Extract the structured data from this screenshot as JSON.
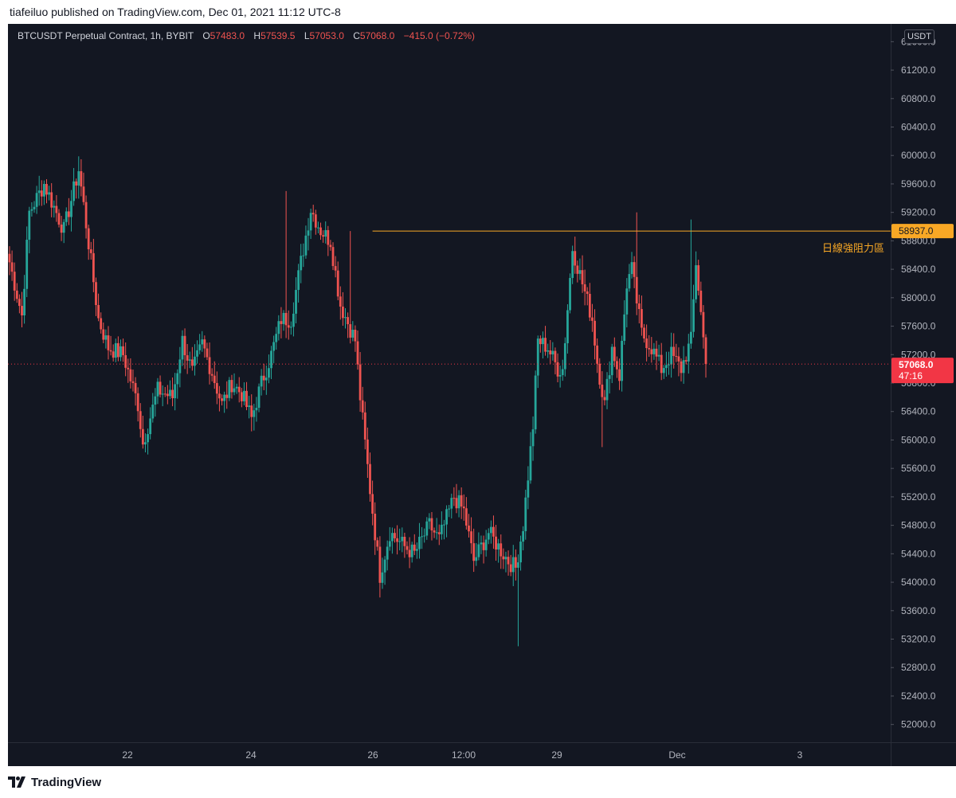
{
  "header": {
    "published_text": "tiafeiluo published on TradingView.com, Dec 01, 2021 11:12 UTC-8"
  },
  "legend": {
    "symbol": "BTCUSDT Perpetual Contract, 1h, BYBIT",
    "o_label": "O",
    "o_value": "57483.0",
    "h_label": "H",
    "h_value": "57539.5",
    "l_label": "L",
    "l_value": "57053.0",
    "c_label": "C",
    "c_value": "57068.0",
    "change": "−415.0 (−0.72%)"
  },
  "price_axis": {
    "currency": "USDT",
    "ticks": [
      "52000.0",
      "52400.0",
      "52800.0",
      "53200.0",
      "53600.0",
      "54000.0",
      "54400.0",
      "54800.0",
      "55200.0",
      "55600.0",
      "56000.0",
      "56400.0",
      "56800.0",
      "57200.0",
      "57600.0",
      "58000.0",
      "58400.0",
      "58800.0",
      "59200.0",
      "59600.0",
      "60000.0",
      "60400.0",
      "60800.0",
      "61200.0",
      "61600.0"
    ]
  },
  "resistance": {
    "price_label": "58937.0",
    "label": "日線強阻力區",
    "color": "#f9a825"
  },
  "last_price": {
    "price_label": "57068.0",
    "countdown": "47:16",
    "color": "#f23645"
  },
  "time_axis": {
    "labels": [
      "22",
      "24",
      "26",
      "12:00",
      "29",
      "Dec",
      "3"
    ]
  },
  "colors": {
    "background": "#131722",
    "up": "#26a69a",
    "down": "#ef5350",
    "text": "#b2b5be"
  },
  "footer": {
    "brand": "TradingView"
  },
  "chart_data": {
    "type": "candlestick",
    "symbol": "BTCUSDT Perpetual Contract",
    "interval": "1h",
    "ylim": [
      51750,
      61850
    ],
    "resistance_level": 58937.0,
    "last_close": 57068.0,
    "key_path": [
      [
        0,
        58500
      ],
      [
        5,
        57750
      ],
      [
        8,
        59200
      ],
      [
        14,
        59600
      ],
      [
        22,
        58950
      ],
      [
        28,
        59800
      ],
      [
        30,
        59300
      ],
      [
        36,
        57700
      ],
      [
        40,
        57300
      ],
      [
        46,
        57200
      ],
      [
        52,
        56500
      ],
      [
        54,
        55950
      ],
      [
        60,
        56700
      ],
      [
        66,
        56600
      ],
      [
        70,
        57400
      ],
      [
        74,
        56950
      ],
      [
        78,
        57350
      ],
      [
        82,
        56950
      ],
      [
        86,
        56500
      ],
      [
        90,
        56800
      ],
      [
        94,
        56650
      ],
      [
        98,
        56300
      ],
      [
        102,
        56800
      ],
      [
        106,
        57200
      ],
      [
        110,
        57700
      ],
      [
        114,
        57700
      ],
      [
        118,
        58500
      ],
      [
        122,
        59250
      ],
      [
        126,
        58950
      ],
      [
        130,
        58800
      ],
      [
        134,
        57900
      ],
      [
        140,
        57400
      ],
      [
        142,
        56600
      ],
      [
        146,
        55300
      ],
      [
        150,
        54100
      ],
      [
        154,
        54700
      ],
      [
        160,
        54500
      ],
      [
        164,
        54400
      ],
      [
        170,
        54800
      ],
      [
        174,
        54600
      ],
      [
        180,
        55200
      ],
      [
        184,
        55000
      ],
      [
        188,
        54300
      ],
      [
        194,
        54700
      ],
      [
        198,
        54500
      ],
      [
        202,
        54300
      ],
      [
        205,
        54200
      ],
      [
        208,
        54800
      ],
      [
        212,
        56200
      ],
      [
        214,
        57400
      ],
      [
        218,
        57300
      ],
      [
        222,
        57000
      ],
      [
        224,
        57000
      ],
      [
        228,
        58700
      ],
      [
        232,
        58200
      ],
      [
        236,
        57700
      ],
      [
        238,
        57100
      ],
      [
        241,
        56500
      ],
      [
        244,
        57300
      ],
      [
        247,
        56900
      ],
      [
        250,
        58200
      ],
      [
        252,
        58400
      ],
      [
        256,
        57500
      ],
      [
        260,
        57300
      ],
      [
        264,
        57000
      ],
      [
        268,
        57200
      ],
      [
        272,
        57000
      ],
      [
        276,
        57400
      ],
      [
        278,
        58500
      ],
      [
        282,
        57068
      ]
    ],
    "wicks": [
      [
        138,
        58937
      ],
      [
        112,
        59500
      ],
      [
        240,
        55900
      ],
      [
        254,
        59200
      ],
      [
        276,
        59100
      ],
      [
        206,
        53100
      ],
      [
        24,
        59400
      ]
    ]
  }
}
